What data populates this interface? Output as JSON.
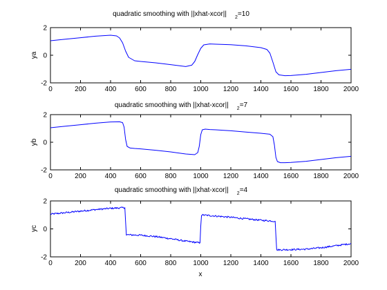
{
  "chart_data": [
    {
      "type": "line",
      "title": "quadratic smoothing with ||xhat-xcor||",
      "title_subscript": "2",
      "title_suffix": "=10",
      "xlabel": "",
      "ylabel": "ya",
      "xlim": [
        0,
        2000
      ],
      "ylim": [
        -2,
        2
      ],
      "xticks": [
        0,
        200,
        400,
        600,
        800,
        1000,
        1200,
        1400,
        1600,
        1800,
        2000
      ],
      "yticks": [
        -2,
        0,
        2
      ],
      "series": [
        {
          "color": "#0000ff",
          "x": [
            0,
            100,
            200,
            300,
            400,
            440,
            460,
            480,
            500,
            520,
            560,
            600,
            700,
            800,
            900,
            940,
            960,
            980,
            1000,
            1020,
            1060,
            1100,
            1200,
            1300,
            1400,
            1440,
            1460,
            1480,
            1500,
            1520,
            1560,
            1600,
            1700,
            1800,
            1900,
            2000
          ],
          "y": [
            1.05,
            1.16,
            1.27,
            1.38,
            1.45,
            1.4,
            1.25,
            0.9,
            0.3,
            -0.15,
            -0.4,
            -0.45,
            -0.55,
            -0.68,
            -0.82,
            -0.72,
            -0.45,
            0.05,
            0.5,
            0.75,
            0.82,
            0.8,
            0.76,
            0.68,
            0.55,
            0.42,
            0.15,
            -0.5,
            -1.2,
            -1.42,
            -1.48,
            -1.47,
            -1.38,
            -1.25,
            -1.12,
            -1.02
          ]
        }
      ]
    },
    {
      "type": "line",
      "title": "quadratic smoothing with ||xhat-xcor||",
      "title_subscript": "2",
      "title_suffix": "=7",
      "xlabel": "",
      "ylabel": "yb",
      "xlim": [
        0,
        2000
      ],
      "ylim": [
        -2,
        2
      ],
      "xticks": [
        0,
        200,
        400,
        600,
        800,
        1000,
        1200,
        1400,
        1600,
        1800,
        2000
      ],
      "yticks": [
        -2,
        0,
        2
      ],
      "series": [
        {
          "color": "#0000ff",
          "x": [
            0,
            100,
            200,
            300,
            400,
            460,
            480,
            490,
            500,
            510,
            530,
            560,
            600,
            700,
            800,
            900,
            960,
            980,
            990,
            1000,
            1010,
            1030,
            1060,
            1100,
            1200,
            1300,
            1400,
            1460,
            1480,
            1490,
            1500,
            1510,
            1530,
            1560,
            1600,
            1700,
            1800,
            1900,
            2000
          ],
          "y": [
            1.05,
            1.16,
            1.27,
            1.38,
            1.47,
            1.48,
            1.42,
            1.1,
            0.2,
            -0.3,
            -0.42,
            -0.45,
            -0.48,
            -0.58,
            -0.7,
            -0.85,
            -0.9,
            -0.75,
            -0.3,
            0.55,
            0.9,
            0.95,
            0.92,
            0.9,
            0.83,
            0.74,
            0.65,
            0.58,
            0.4,
            -0.2,
            -1.1,
            -1.4,
            -1.48,
            -1.48,
            -1.46,
            -1.38,
            -1.25,
            -1.12,
            -1.02
          ]
        }
      ]
    },
    {
      "type": "line",
      "title": "quadratic smoothing with ||xhat-xcor||",
      "title_subscript": "2",
      "title_suffix": "=4",
      "xlabel": "x",
      "ylabel": "yc",
      "xlim": [
        0,
        2000
      ],
      "ylim": [
        -2,
        2
      ],
      "xticks": [
        0,
        200,
        400,
        600,
        800,
        1000,
        1200,
        1400,
        1600,
        1800,
        2000
      ],
      "yticks": [
        -2,
        0,
        2
      ],
      "series": [
        {
          "color": "#0000ff",
          "x": [
            0,
            100,
            200,
            300,
            400,
            495,
            500,
            505,
            600,
            700,
            800,
            900,
            995,
            1000,
            1005,
            1100,
            1200,
            1300,
            1400,
            1495,
            1500,
            1505,
            1600,
            1700,
            1800,
            1900,
            2000
          ],
          "y": [
            1.05,
            1.16,
            1.27,
            1.38,
            1.47,
            1.52,
            0.5,
            -0.42,
            -0.45,
            -0.55,
            -0.7,
            -0.88,
            -1.0,
            0.2,
            1.0,
            0.92,
            0.83,
            0.72,
            0.62,
            0.55,
            -0.5,
            -1.5,
            -1.48,
            -1.45,
            -1.35,
            -1.2,
            -1.05
          ]
        }
      ]
    }
  ]
}
